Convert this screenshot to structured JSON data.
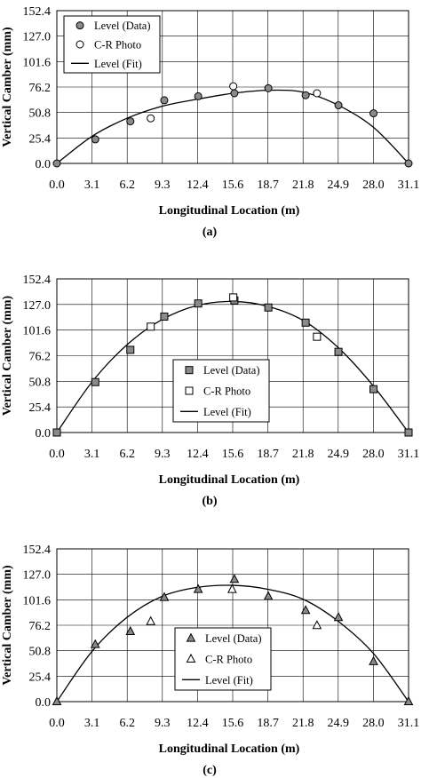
{
  "chart_data": [
    {
      "type": "scatter",
      "panel_label": "(a)",
      "xlabel": "Longitudinal Location (m)",
      "ylabel": "Vertical Camber (mm)",
      "x_ticks": [
        "0.0",
        "3.1",
        "6.2",
        "9.3",
        "12.4",
        "15.6",
        "18.7",
        "21.8",
        "24.9",
        "28.0",
        "31.1"
      ],
      "y_ticks": [
        "0.0",
        "25.4",
        "50.8",
        "76.2",
        "101.6",
        "127.0",
        "152.4"
      ],
      "xlim": [
        0,
        31.1
      ],
      "ylim": [
        0,
        152.4
      ],
      "grid": true,
      "legend_position": "top-left",
      "marker": "circle",
      "series": [
        {
          "name": "Level (Data)",
          "style": "marker-filled",
          "x": [
            0.0,
            3.4,
            6.5,
            9.5,
            12.5,
            15.7,
            18.7,
            22.0,
            24.9,
            28.0,
            31.1
          ],
          "y": [
            0.0,
            24.0,
            42.0,
            63.0,
            67.0,
            70.0,
            75.0,
            68.0,
            58.0,
            50.0,
            0.0
          ]
        },
        {
          "name": "C-R Photo",
          "style": "marker-open",
          "x": [
            8.3,
            15.6,
            23.0
          ],
          "y": [
            45.0,
            77.0,
            70.0
          ]
        },
        {
          "name": "Level (Fit)",
          "style": "line",
          "x": [
            0.0,
            3.1,
            6.2,
            9.3,
            12.4,
            15.6,
            18.7,
            21.8,
            24.9,
            28.0,
            31.1
          ],
          "y": [
            0.0,
            27.0,
            45.0,
            57.0,
            64.0,
            70.0,
            73.0,
            71.0,
            58.0,
            36.0,
            0.0
          ]
        }
      ]
    },
    {
      "type": "scatter",
      "panel_label": "(b)",
      "xlabel": "Longitudinal Location (m)",
      "ylabel": "Vertical Camber (mm)",
      "x_ticks": [
        "0.0",
        "3.1",
        "6.2",
        "9.3",
        "12.4",
        "15.6",
        "18.7",
        "21.8",
        "24.9",
        "28.0",
        "31.1"
      ],
      "y_ticks": [
        "0.0",
        "25.4",
        "50.8",
        "76.2",
        "101.6",
        "127.0",
        "152.4"
      ],
      "xlim": [
        0,
        31.1
      ],
      "ylim": [
        0,
        152.4
      ],
      "grid": true,
      "legend_position": "bottom-center",
      "marker": "square",
      "series": [
        {
          "name": "Level (Data)",
          "style": "marker-filled",
          "x": [
            0.0,
            3.4,
            6.5,
            9.5,
            12.5,
            15.7,
            18.7,
            22.0,
            24.9,
            28.0,
            31.1
          ],
          "y": [
            0.0,
            50.0,
            82.0,
            115.0,
            128.0,
            131.0,
            124.0,
            109.0,
            80.0,
            43.0,
            0.0
          ]
        },
        {
          "name": "C-R Photo",
          "style": "marker-open",
          "x": [
            8.3,
            15.6,
            23.0
          ],
          "y": [
            105.0,
            134.0,
            95.0
          ]
        },
        {
          "name": "Level (Fit)",
          "style": "line",
          "x": [
            0.0,
            3.1,
            6.2,
            9.3,
            12.4,
            15.6,
            18.7,
            21.8,
            24.9,
            28.0,
            31.1
          ],
          "y": [
            0.0,
            50.0,
            87.0,
            112.0,
            126.0,
            130.0,
            125.0,
            111.0,
            84.0,
            46.0,
            0.0
          ]
        }
      ]
    },
    {
      "type": "scatter",
      "panel_label": "(c)",
      "xlabel": "Longitudinal Location (m)",
      "ylabel": "Vertical Camber (mm)",
      "x_ticks": [
        "0.0",
        "3.1",
        "6.2",
        "9.3",
        "12.4",
        "15.6",
        "18.7",
        "21.8",
        "24.9",
        "28.0",
        "31.1"
      ],
      "y_ticks": [
        "0.0",
        "25.4",
        "50.8",
        "76.2",
        "101.6",
        "127.0",
        "152.4"
      ],
      "xlim": [
        0,
        31.1
      ],
      "ylim": [
        0,
        152.4
      ],
      "grid": true,
      "legend_position": "bottom-center",
      "marker": "triangle",
      "series": [
        {
          "name": "Level (Data)",
          "style": "marker-filled",
          "x": [
            0.0,
            3.4,
            6.5,
            9.5,
            12.5,
            15.7,
            18.7,
            22.0,
            24.9,
            28.0,
            31.1
          ],
          "y": [
            0.0,
            57.0,
            70.0,
            104.0,
            112.0,
            122.0,
            105.0,
            91.0,
            84.0,
            40.0,
            0.0
          ]
        },
        {
          "name": "C-R Photo",
          "style": "marker-open",
          "x": [
            8.3,
            15.5,
            23.0
          ],
          "y": [
            80.0,
            112.0,
            76.0
          ]
        },
        {
          "name": "Level (Fit)",
          "style": "line",
          "x": [
            0.0,
            3.1,
            6.2,
            9.3,
            12.4,
            15.6,
            18.7,
            21.8,
            24.9,
            28.0,
            31.1
          ],
          "y": [
            0.0,
            50.0,
            84.0,
            105.0,
            114.0,
            116.0,
            112.0,
            102.0,
            80.0,
            48.0,
            0.0
          ]
        }
      ]
    }
  ]
}
